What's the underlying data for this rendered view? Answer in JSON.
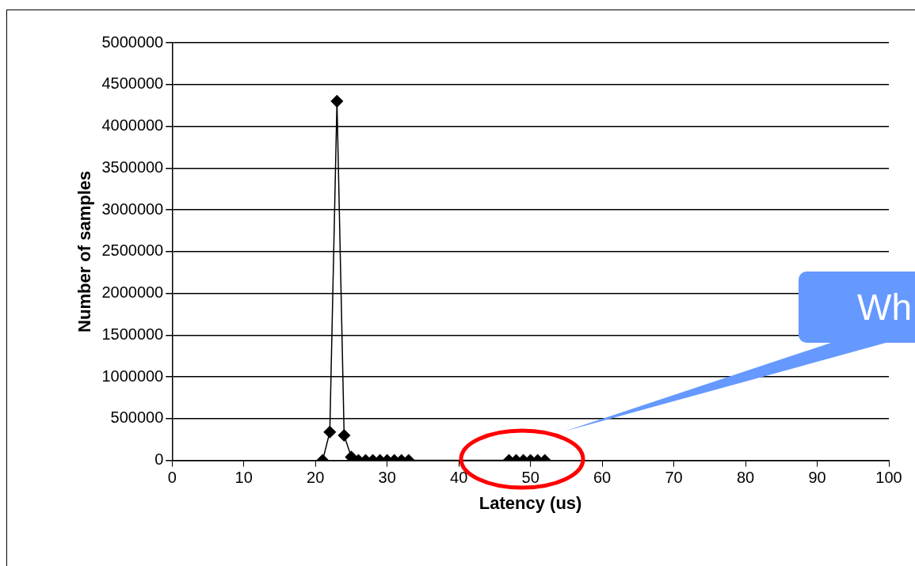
{
  "chart_data": {
    "type": "line",
    "xlabel": "Latency (us)",
    "ylabel": "Number of samples",
    "x": [
      21,
      22,
      23,
      24,
      25,
      26,
      27,
      28,
      29,
      30,
      31,
      32,
      33,
      47,
      48,
      49,
      50,
      51,
      52
    ],
    "series": [
      {
        "color": "#000000",
        "values": [
          0,
          340000,
          4300000,
          300000,
          40000,
          0,
          0,
          0,
          0,
          0,
          0,
          0,
          0,
          0,
          0,
          0,
          0,
          0,
          0
        ]
      }
    ],
    "xlim": [
      0,
      100
    ],
    "xticks": [
      0,
      10,
      20,
      30,
      40,
      50,
      60,
      70,
      80,
      90,
      100
    ],
    "ylim": [
      0,
      5000000
    ],
    "yticks": [
      0,
      500000,
      1000000,
      1500000,
      2000000,
      2500000,
      3000000,
      3500000,
      4000000,
      4500000,
      5000000
    ],
    "grid": "y",
    "marker": "diamond",
    "line_style": "solid",
    "legend": false,
    "annotations": [
      "Wh"
    ]
  }
}
